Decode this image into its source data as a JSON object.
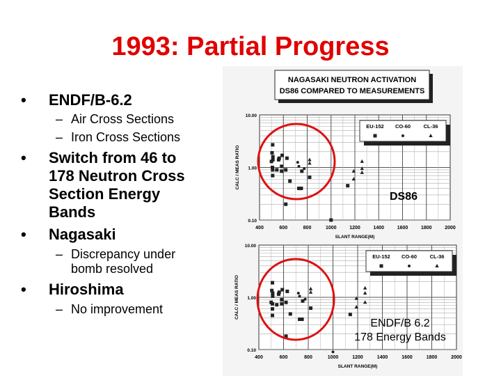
{
  "title": "1993: Partial Progress",
  "bullets": [
    {
      "text": "ENDF/B-6.2",
      "sub": [
        "Air Cross Sections",
        "Iron Cross Sections"
      ]
    },
    {
      "text": "Switch from 46 to 178 Neutron Cross Section Energy Bands",
      "sub": []
    },
    {
      "text": "Nagasaki",
      "sub": [
        "Discrepancy under bomb resolved"
      ]
    },
    {
      "text": "Hiroshima",
      "sub": [
        "No improvement"
      ]
    }
  ],
  "chart_header": [
    "NAGASAKI NEUTRON ACTIVATION",
    "DS86 COMPARED TO MEASUREMENTS"
  ],
  "annotation_color": "#dd1111",
  "chart_data": [
    {
      "type": "scatter",
      "label": "DS86",
      "xlabel": "SLANT RANGE(M)",
      "ylabel": "CALC / MEAS RATIO",
      "xlim": [
        400,
        2000
      ],
      "ylim": [
        0.1,
        10
      ],
      "yscale": "log",
      "grid": true,
      "legend": "top-right",
      "xticks": [
        "400",
        "600",
        "800",
        "1000",
        "1200",
        "1400",
        "1600",
        "1800",
        "2000"
      ],
      "yticks": [
        "10.00",
        "1.00",
        "0.10"
      ],
      "series": [
        {
          "name": "EU-152",
          "marker": "square",
          "points": [
            [
              510,
              2.7
            ],
            [
              505,
              1.9
            ],
            [
              512,
              1.6
            ],
            [
              500,
              1.3
            ],
            [
              512,
              1.4
            ],
            [
              508,
              1.0
            ],
            [
              510,
              0.9
            ],
            [
              510,
              0.7
            ],
            [
              545,
              0.9
            ],
            [
              560,
              1.4
            ],
            [
              565,
              1.5
            ],
            [
              585,
              1.05
            ],
            [
              590,
              1.7
            ],
            [
              585,
              0.85
            ],
            [
              620,
              0.9
            ],
            [
              630,
              1.5
            ],
            [
              655,
              0.55
            ],
            [
              730,
              0.4
            ],
            [
              750,
              0.4
            ],
            [
              755,
              0.85
            ],
            [
              820,
              0.65
            ],
            [
              620,
              0.2
            ],
            [
              1000,
              0.1
            ],
            [
              1140,
              0.45
            ]
          ]
        },
        {
          "name": "CO-60",
          "marker": "dot",
          "points": [
            [
              775,
              0.95
            ],
            [
              720,
              1.25
            ],
            [
              730,
              1.05
            ]
          ]
        },
        {
          "name": "CL-36",
          "marker": "triangle",
          "points": [
            [
              820,
              1.4
            ],
            [
              820,
              1.2
            ],
            [
              1190,
              0.85
            ],
            [
              1190,
              0.6
            ],
            [
              1260,
              1.3
            ],
            [
              1260,
              0.8
            ],
            [
              1260,
              0.95
            ]
          ]
        }
      ]
    },
    {
      "type": "scatter",
      "label": "ENDF/B 6.2\n178 Energy Bands",
      "label_lines": [
        "ENDF/B 6.2",
        "178 Energy Bands"
      ],
      "xlabel": "SLANT RANGE(M)",
      "ylabel": "CALC / MEAS RATIO",
      "xlim": [
        400,
        2000
      ],
      "ylim": [
        0.1,
        10
      ],
      "yscale": "log",
      "grid": true,
      "legend": "top-right",
      "xticks": [
        "400",
        "600",
        "800",
        "1000",
        "1200",
        "1400",
        "1600",
        "1800",
        "2000"
      ],
      "yticks": [
        "10.00",
        "1.00",
        "0.10"
      ],
      "series": [
        {
          "name": "EU-152",
          "marker": "square",
          "points": [
            [
              510,
              1.9
            ],
            [
              505,
              1.35
            ],
            [
              512,
              1.2
            ],
            [
              500,
              0.8
            ],
            [
              512,
              1.05
            ],
            [
              510,
              0.75
            ],
            [
              510,
              0.6
            ],
            [
              510,
              0.45
            ],
            [
              545,
              0.72
            ],
            [
              560,
              1.15
            ],
            [
              565,
              1.25
            ],
            [
              585,
              0.9
            ],
            [
              590,
              1.4
            ],
            [
              585,
              0.75
            ],
            [
              620,
              0.8
            ],
            [
              630,
              1.3
            ],
            [
              655,
              0.48
            ],
            [
              730,
              0.38
            ],
            [
              750,
              0.38
            ],
            [
              755,
              0.85
            ],
            [
              820,
              0.62
            ],
            [
              620,
              0.18
            ],
            [
              1140,
              0.47
            ]
          ]
        },
        {
          "name": "CO-60",
          "marker": "dot",
          "points": [
            [
              775,
              0.92
            ],
            [
              720,
              1.2
            ],
            [
              730,
              1.05
            ],
            [
              1000,
              0.09
            ]
          ]
        },
        {
          "name": "CL-36",
          "marker": "triangle",
          "points": [
            [
              820,
              1.45
            ],
            [
              820,
              1.25
            ],
            [
              1190,
              0.95
            ],
            [
              1190,
              0.65
            ],
            [
              1260,
              1.5
            ],
            [
              1260,
              0.8
            ],
            [
              1260,
              1.2
            ]
          ]
        }
      ]
    }
  ]
}
